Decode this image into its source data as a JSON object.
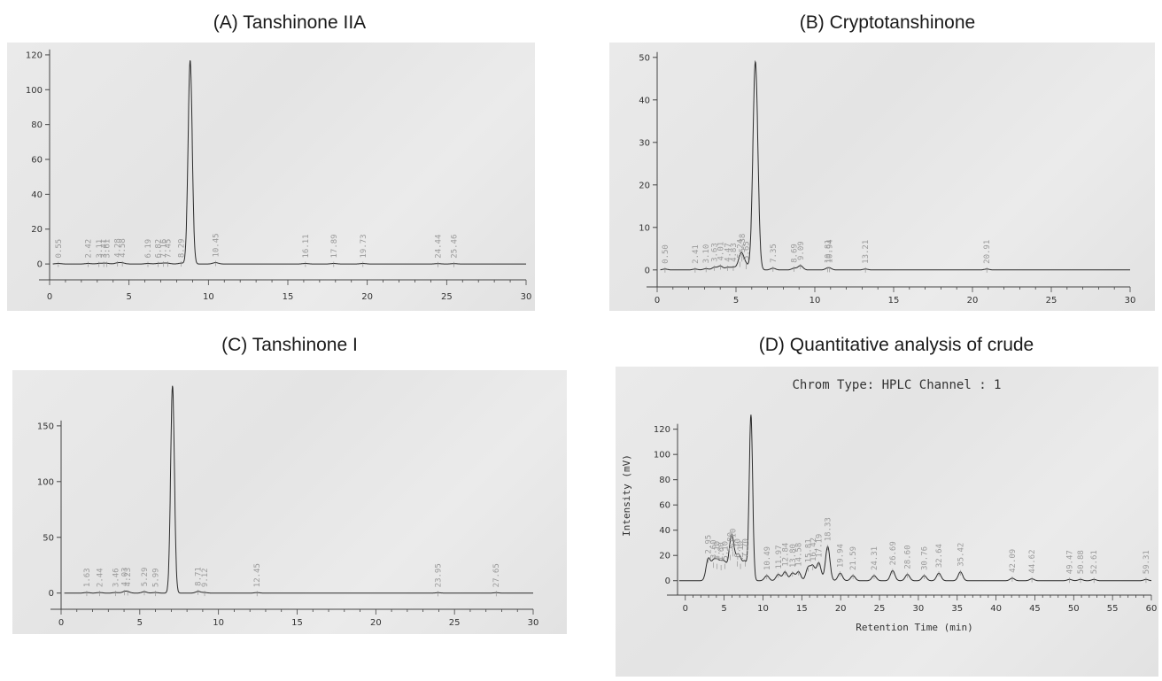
{
  "panels": [
    {
      "title": "(A) Tanshinone IIA"
    },
    {
      "title": "(B) Cryptotanshinone"
    },
    {
      "title": "(C) Tanshinone I"
    },
    {
      "title": "(D) Quantitative analysis of crude"
    }
  ],
  "chart_data": [
    {
      "type": "line",
      "title": "(A) Tanshinone IIA",
      "xlabel": "",
      "ylabel": "",
      "xlim": [
        0,
        30
      ],
      "ylim": [
        -3,
        122
      ],
      "xticks": [
        0,
        5,
        10,
        15,
        20,
        25,
        30
      ],
      "yticks": [
        0,
        20,
        40,
        60,
        80,
        100,
        120
      ],
      "peaks": [
        [
          0.55,
          0.3
        ],
        [
          2.42,
          0.3
        ],
        [
          3.11,
          0.3
        ],
        [
          3.41,
          0.3
        ],
        [
          3.61,
          0.3
        ],
        [
          4.28,
          0.6
        ],
        [
          4.58,
          0.6
        ],
        [
          6.19,
          0.3
        ],
        [
          6.82,
          0.3
        ],
        [
          7.16,
          0.4
        ],
        [
          7.45,
          0.4
        ],
        [
          8.29,
          0.5
        ],
        [
          8.85,
          117
        ],
        [
          10.45,
          0.8
        ],
        [
          16.11,
          0.3
        ],
        [
          17.89,
          0.3
        ],
        [
          19.73,
          0.3
        ],
        [
          24.44,
          0.2
        ],
        [
          25.46,
          0.2
        ]
      ],
      "peak_labels": [
        "0.55",
        "2.42",
        "3.11",
        "3.41",
        "3.61",
        "4.28",
        "4.58",
        "6.19",
        "6.82",
        "7.16",
        "7.45",
        "8.29",
        "",
        "10.45",
        "16.11",
        "17.89",
        "19.73",
        "24.44",
        "25.46"
      ]
    },
    {
      "type": "line",
      "title": "(B) Cryptotanshinone",
      "xlabel": "",
      "ylabel": "",
      "xlim": [
        0,
        30
      ],
      "ylim": [
        -1.5,
        51
      ],
      "xticks": [
        0,
        5,
        10,
        15,
        20,
        25,
        30
      ],
      "yticks": [
        0,
        10,
        20,
        30,
        40,
        50
      ],
      "peaks": [
        [
          0.5,
          0.2
        ],
        [
          2.41,
          0.2
        ],
        [
          3.1,
          0.3
        ],
        [
          3.63,
          0.6
        ],
        [
          4.01,
          0.9
        ],
        [
          4.47,
          0.6
        ],
        [
          4.83,
          0.6
        ],
        [
          5.24,
          1.5
        ],
        [
          5.38,
          2.8
        ],
        [
          5.65,
          1.0
        ],
        [
          6.23,
          49
        ],
        [
          7.35,
          0.4
        ],
        [
          8.69,
          0.4
        ],
        [
          9.09,
          1.0
        ],
        [
          10.81,
          0.3
        ],
        [
          10.94,
          0.3
        ],
        [
          13.21,
          0.2
        ],
        [
          20.91,
          0.2
        ]
      ],
      "peak_labels": [
        "0.50",
        "2.41",
        "3.10",
        "3.63",
        "4.01",
        "4.47",
        "4.83",
        "5.24",
        "5.38",
        "5.65",
        "",
        "7.35",
        "8.69",
        "9.09",
        "10.81",
        "10.94",
        "13.21",
        "20.91"
      ]
    },
    {
      "type": "line",
      "title": "(C) Tanshinone I",
      "xlabel": "",
      "ylabel": "",
      "xlim": [
        0,
        30
      ],
      "ylim": [
        -5,
        192
      ],
      "xticks": [
        0,
        5,
        10,
        15,
        20,
        25,
        30
      ],
      "yticks": [
        0,
        50,
        100,
        150
      ],
      "peaks": [
        [
          1.63,
          0.5
        ],
        [
          2.44,
          0.5
        ],
        [
          3.46,
          0.5
        ],
        [
          4.03,
          1.2
        ],
        [
          4.23,
          1.0
        ],
        [
          5.29,
          1.2
        ],
        [
          5.99,
          0.5
        ],
        [
          7.08,
          186
        ],
        [
          8.71,
          1.5
        ],
        [
          9.12,
          0.5
        ],
        [
          12.45,
          0.4
        ],
        [
          23.95,
          0.3
        ],
        [
          27.65,
          0.3
        ]
      ],
      "peak_labels": [
        "1.63",
        "2.44",
        "3.46",
        "4.03",
        "4.23",
        "5.29",
        "5.99",
        "",
        "8.71",
        "9.12",
        "12.45",
        "23.95",
        "27.65"
      ]
    },
    {
      "type": "line",
      "title": "(D) Quantitative analysis of crude",
      "subtitle": "Chrom Type: HPLC Channel : 1",
      "xlabel": "Retention Time (min)",
      "ylabel": "Intensity (mV)",
      "xlim": [
        -1,
        60
      ],
      "ylim": [
        -3,
        138
      ],
      "xticks": [
        0,
        5,
        10,
        15,
        20,
        25,
        30,
        35,
        40,
        45,
        50,
        55,
        60
      ],
      "yticks": [
        0,
        20,
        40,
        60,
        80,
        100,
        120
      ],
      "peaks": [
        [
          2.95,
          17
        ],
        [
          3.6,
          13
        ],
        [
          4.1,
          12
        ],
        [
          4.6,
          11
        ],
        [
          5.1,
          12
        ],
        [
          5.8,
          19
        ],
        [
          6.1,
          22
        ],
        [
          6.7,
          14
        ],
        [
          7.1,
          12
        ],
        [
          7.7,
          14
        ],
        [
          8.45,
          131
        ],
        [
          10.49,
          4
        ],
        [
          11.97,
          5
        ],
        [
          12.84,
          7
        ],
        [
          13.8,
          6
        ],
        [
          14.58,
          7
        ],
        [
          15.81,
          10
        ],
        [
          16.42,
          11
        ],
        [
          17.19,
          14
        ],
        [
          18.33,
          27
        ],
        [
          19.94,
          6
        ],
        [
          21.59,
          4
        ],
        [
          24.31,
          4
        ],
        [
          26.69,
          8
        ],
        [
          28.6,
          5
        ],
        [
          30.76,
          4
        ],
        [
          32.64,
          6
        ],
        [
          35.42,
          7
        ],
        [
          42.09,
          2
        ],
        [
          44.62,
          1.5
        ],
        [
          49.47,
          1
        ],
        [
          50.88,
          1
        ],
        [
          52.61,
          1
        ],
        [
          59.31,
          1
        ]
      ],
      "peak_labels": [
        "2.95",
        "3.60",
        "4.10",
        "4.60",
        "5.10",
        "5.80",
        "6.10",
        "6.70",
        "7.10",
        "7.70",
        "",
        "10.49",
        "11.97",
        "12.84",
        "13.80",
        "14.58",
        "15.81",
        "16.42",
        "17.19",
        "18.33",
        "19.94",
        "21.59",
        "24.31",
        "26.69",
        "28.60",
        "30.76",
        "32.64",
        "35.42",
        "42.09",
        "44.62",
        "49.47",
        "50.88",
        "52.61",
        "59.31"
      ]
    }
  ]
}
